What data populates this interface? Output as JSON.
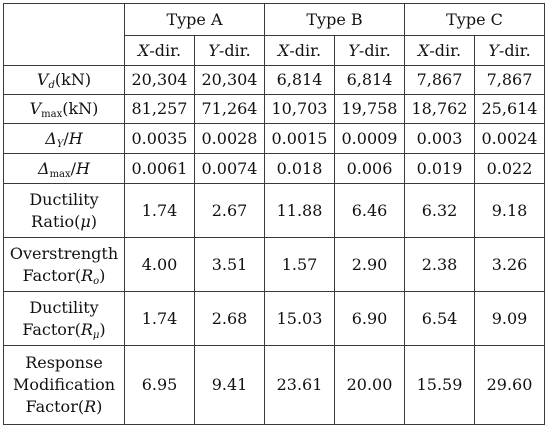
{
  "columns": {
    "types": [
      "Type A",
      "Type B",
      "Type C"
    ],
    "dirs": {
      "x": {
        "italic": "X",
        "rest": "-dir."
      },
      "y": {
        "italic": "Y",
        "rest": "-dir."
      }
    }
  },
  "rows": [
    {
      "id": "vd",
      "label": {
        "sym": "V",
        "sub": "d",
        "rest": "(kN)"
      },
      "values": [
        "20,304",
        "20,304",
        "6,814",
        "6,814",
        "7,867",
        "7,867"
      ]
    },
    {
      "id": "vmax",
      "label": {
        "sym": "V",
        "sub": "max",
        "rest": "(kN)"
      },
      "values": [
        "81,257",
        "71,264",
        "10,703",
        "19,758",
        "18,762",
        "25,614"
      ]
    },
    {
      "id": "dy",
      "label": {
        "sym": "Δ",
        "sub": "Y",
        "rest": "/",
        "after": "H"
      },
      "values": [
        "0.0035",
        "0.0028",
        "0.0015",
        "0.0009",
        "0.003",
        "0.0024"
      ]
    },
    {
      "id": "dmax",
      "label": {
        "sym": "Δ",
        "sub": "max",
        "rest": "/",
        "after": "H"
      },
      "values": [
        "0.0061",
        "0.0074",
        "0.018",
        "0.006",
        "0.019",
        "0.022"
      ]
    },
    {
      "id": "ductility-ratio",
      "label": {
        "line1": "Ductility",
        "line2": "Ratio(",
        "sym": "μ",
        "close": ")"
      },
      "values": [
        "1.74",
        "2.67",
        "11.88",
        "6.46",
        "6.32",
        "9.18"
      ]
    },
    {
      "id": "overstrength",
      "label": {
        "line1": "Overstrength",
        "line2": "Factor(",
        "sym": "R",
        "sub": "o",
        "close": ")"
      },
      "values": [
        "4.00",
        "3.51",
        "1.57",
        "2.90",
        "2.38",
        "3.26"
      ]
    },
    {
      "id": "ductility-factor",
      "label": {
        "line1": "Ductility",
        "line2": "Factor(",
        "sym": "R",
        "sub": "μ",
        "close": ")"
      },
      "values": [
        "1.74",
        "2.68",
        "15.03",
        "6.90",
        "6.54",
        "9.09"
      ]
    },
    {
      "id": "response-mod",
      "label": {
        "line1": "Response",
        "line2": "Modification",
        "line3": "Factor(",
        "sym": "R",
        "close": ")"
      },
      "values": [
        "6.95",
        "9.41",
        "23.61",
        "20.00",
        "15.59",
        "29.60"
      ]
    }
  ]
}
